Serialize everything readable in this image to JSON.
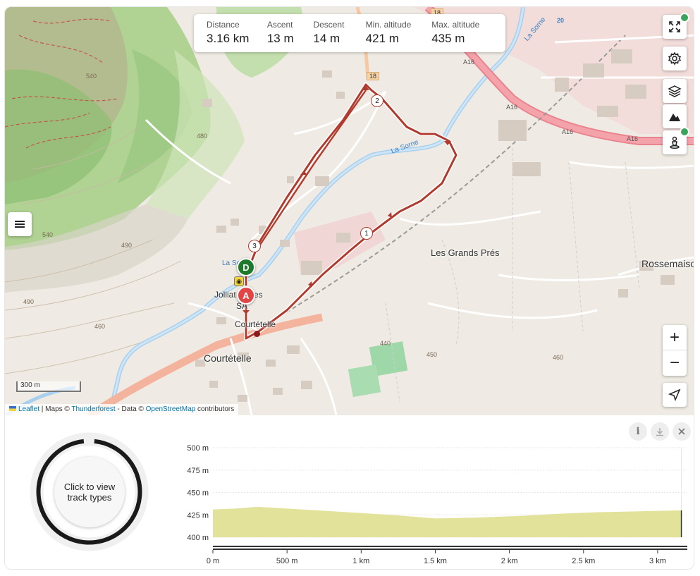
{
  "stats": [
    {
      "label": "Distance",
      "value": "3.16 km"
    },
    {
      "label": "Ascent",
      "value": "13 m"
    },
    {
      "label": "Descent",
      "value": "14 m"
    },
    {
      "label": "Min. altitude",
      "value": "421 m"
    },
    {
      "label": "Max. altitude",
      "value": "435 m"
    }
  ],
  "map": {
    "scale_label": "300 m",
    "labels": {
      "grands_pres": "Les Grands Prés",
      "rossemaison": "Rossemaison",
      "courtetelle_1": "Courtételle",
      "courtetelle_2": "Courtételle",
      "jolliat": "Jolliat Frères",
      "sa": "SA",
      "la_sorne_1": "La Sorne",
      "la_sorne_2": "La Sorne",
      "la_so": "La So",
      "a16_1": "A16",
      "a16_2": "A16",
      "a16_3": "A16",
      "a16_4": "A16",
      "road_18a": "18",
      "road_18b": "18",
      "road_20": "20",
      "c540a": "540",
      "c540b": "540",
      "c490a": "490",
      "c490b": "490",
      "c480": "480",
      "c460a": "460",
      "c460b": "460",
      "c440": "440",
      "c450": "450"
    },
    "markers": {
      "start": "D",
      "end": "A",
      "km1": "1",
      "km2": "2",
      "km3": "3"
    },
    "attribution": {
      "leaflet": "Leaflet",
      "sep": " | Maps © ",
      "thunderforest": "Thunderforest",
      "data": " - Data © ",
      "osm": "OpenStreetMap",
      "contrib": " contributors"
    },
    "route_color": "#b03a2e",
    "accent_start": "#1e7a2a",
    "accent_end": "#e04646"
  },
  "panel": {
    "track_types_button": "Click to view track types"
  },
  "chart_data": {
    "type": "area",
    "x": [
      0,
      0.15,
      0.3,
      0.5,
      0.8,
      1.0,
      1.2,
      1.5,
      1.8,
      2.1,
      2.3,
      2.6,
      2.9,
      3.16
    ],
    "y": [
      431,
      432,
      434,
      432,
      429,
      427,
      425,
      421,
      422,
      424,
      426,
      428,
      429,
      430
    ],
    "xlim": [
      0,
      3.2
    ],
    "ylim": [
      400,
      500
    ],
    "x_ticks": [
      "0 m",
      "500 m",
      "1 km",
      "1.5 km",
      "2 km",
      "2.5 km",
      "3 km"
    ],
    "x_tick_values": [
      0,
      0.5,
      1.0,
      1.5,
      2.0,
      2.5,
      3.0
    ],
    "y_ticks": [
      "500 m",
      "475 m",
      "450 m",
      "425 m",
      "400 m"
    ],
    "y_tick_values": [
      500,
      475,
      450,
      425,
      400
    ],
    "fill_color": "#e3e29b",
    "grid": true
  }
}
